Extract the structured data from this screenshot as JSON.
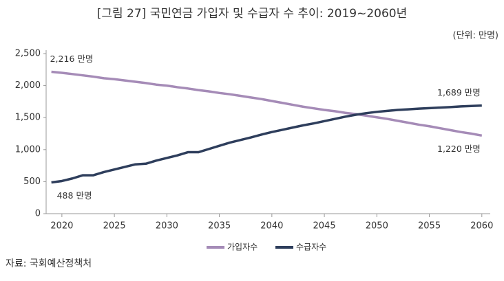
{
  "chart_data": {
    "type": "line",
    "title": "[그림 27] 국민연금 가입자 및 수급자 수 추이: 2019~2060년",
    "unit": "(단위: 만명)",
    "source": "자료: 국회예산정책처",
    "x": [
      2019,
      2020,
      2021,
      2022,
      2023,
      2024,
      2025,
      2026,
      2027,
      2028,
      2029,
      2030,
      2031,
      2032,
      2033,
      2034,
      2035,
      2036,
      2037,
      2038,
      2039,
      2040,
      2041,
      2042,
      2043,
      2044,
      2045,
      2046,
      2047,
      2048,
      2049,
      2050,
      2051,
      2052,
      2053,
      2054,
      2055,
      2056,
      2057,
      2058,
      2059,
      2060
    ],
    "series": [
      {
        "name": "가입자수",
        "color": "#a58bb7",
        "values": [
          2216,
          2200,
          2180,
          2160,
          2140,
          2115,
          2100,
          2080,
          2060,
          2040,
          2015,
          2000,
          1975,
          1955,
          1930,
          1910,
          1885,
          1865,
          1840,
          1815,
          1790,
          1760,
          1730,
          1700,
          1670,
          1645,
          1620,
          1600,
          1575,
          1555,
          1530,
          1505,
          1480,
          1450,
          1420,
          1390,
          1365,
          1335,
          1305,
          1275,
          1250,
          1220
        ],
        "value_labels": [
          "2,216 만명",
          null,
          null,
          null,
          null,
          null,
          null,
          null,
          null,
          null,
          null,
          null,
          null,
          null,
          null,
          null,
          null,
          null,
          null,
          null,
          null,
          null,
          null,
          null,
          null,
          null,
          null,
          null,
          null,
          null,
          null,
          null,
          null,
          null,
          null,
          null,
          null,
          null,
          null,
          null,
          null,
          "1,220 만명"
        ]
      },
      {
        "name": "수급자수",
        "color": "#2e3e5c",
        "values": [
          488,
          510,
          550,
          600,
          600,
          650,
          690,
          730,
          770,
          780,
          830,
          870,
          910,
          960,
          960,
          1010,
          1060,
          1110,
          1150,
          1190,
          1235,
          1275,
          1310,
          1345,
          1380,
          1410,
          1445,
          1480,
          1515,
          1545,
          1570,
          1590,
          1605,
          1620,
          1630,
          1640,
          1648,
          1657,
          1665,
          1675,
          1682,
          1689
        ],
        "value_labels": [
          "488 만명",
          null,
          null,
          null,
          null,
          null,
          null,
          null,
          null,
          null,
          null,
          null,
          null,
          null,
          null,
          null,
          null,
          null,
          null,
          null,
          null,
          null,
          null,
          null,
          null,
          null,
          null,
          null,
          null,
          null,
          null,
          null,
          null,
          null,
          null,
          null,
          null,
          null,
          null,
          null,
          null,
          "1,689 만명"
        ]
      }
    ],
    "xlim": [
      2018.5,
      2060.8
    ],
    "xticks": [
      2020,
      2025,
      2030,
      2035,
      2040,
      2045,
      2050,
      2055,
      2060
    ],
    "ylim": [
      0,
      2500
    ],
    "yticks": [
      0,
      500,
      {
        "value": 1000,
        "label": "1,000"
      },
      {
        "value": 1500,
        "label": "1,500"
      },
      {
        "value": 2000,
        "label": "2,000"
      },
      {
        "value": 2500,
        "label": "2,500"
      }
    ],
    "legend": "bottom"
  }
}
